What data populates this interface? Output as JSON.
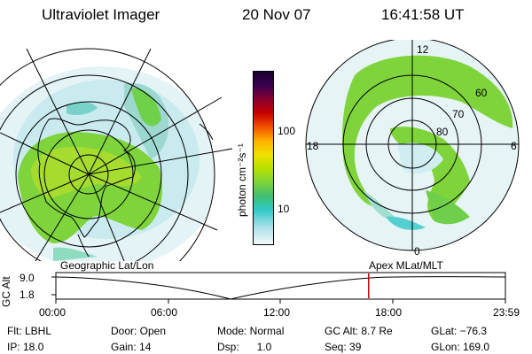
{
  "header": {
    "title": "Ultraviolet Imager",
    "date": "20 Nov 07",
    "time": "16:41:58 UT"
  },
  "colorbar": {
    "unit_label": "photon cm⁻²s⁻¹",
    "ticks": [
      "100",
      "10"
    ]
  },
  "right_map": {
    "mlt_labels": [
      "12",
      "18",
      "6",
      "0"
    ],
    "lat_labels": [
      "60",
      "70",
      "80"
    ]
  },
  "timeline": {
    "left_title": "Geographic Lat/Lon",
    "right_title": "Apex MLat/MLT",
    "axis_title": "GC Alt",
    "y_ticks": [
      "9.0",
      "1.8"
    ],
    "x_ticks": [
      "00:00",
      "06:00",
      "12:00",
      "18:00",
      "23:59"
    ],
    "current_time_hours": 16.7
  },
  "info": {
    "flt": "Flt: LBHL",
    "ip": "IP: 18.0",
    "door": "Door: Open",
    "gain": "Gain: 14",
    "mode": "Mode: Normal",
    "dsp": "Dsp:      1.0",
    "gcalt": "GC Alt: 8.7 Re",
    "seq": "Seq: 39",
    "glat": "GLat: −76.3",
    "glon": "GLon: 169.0"
  },
  "colors": {
    "emission_main": "#7ed43a",
    "emission_dim": "#c6e9ee",
    "emission_mid": "#55cfd0",
    "marker": "#cc0000"
  }
}
